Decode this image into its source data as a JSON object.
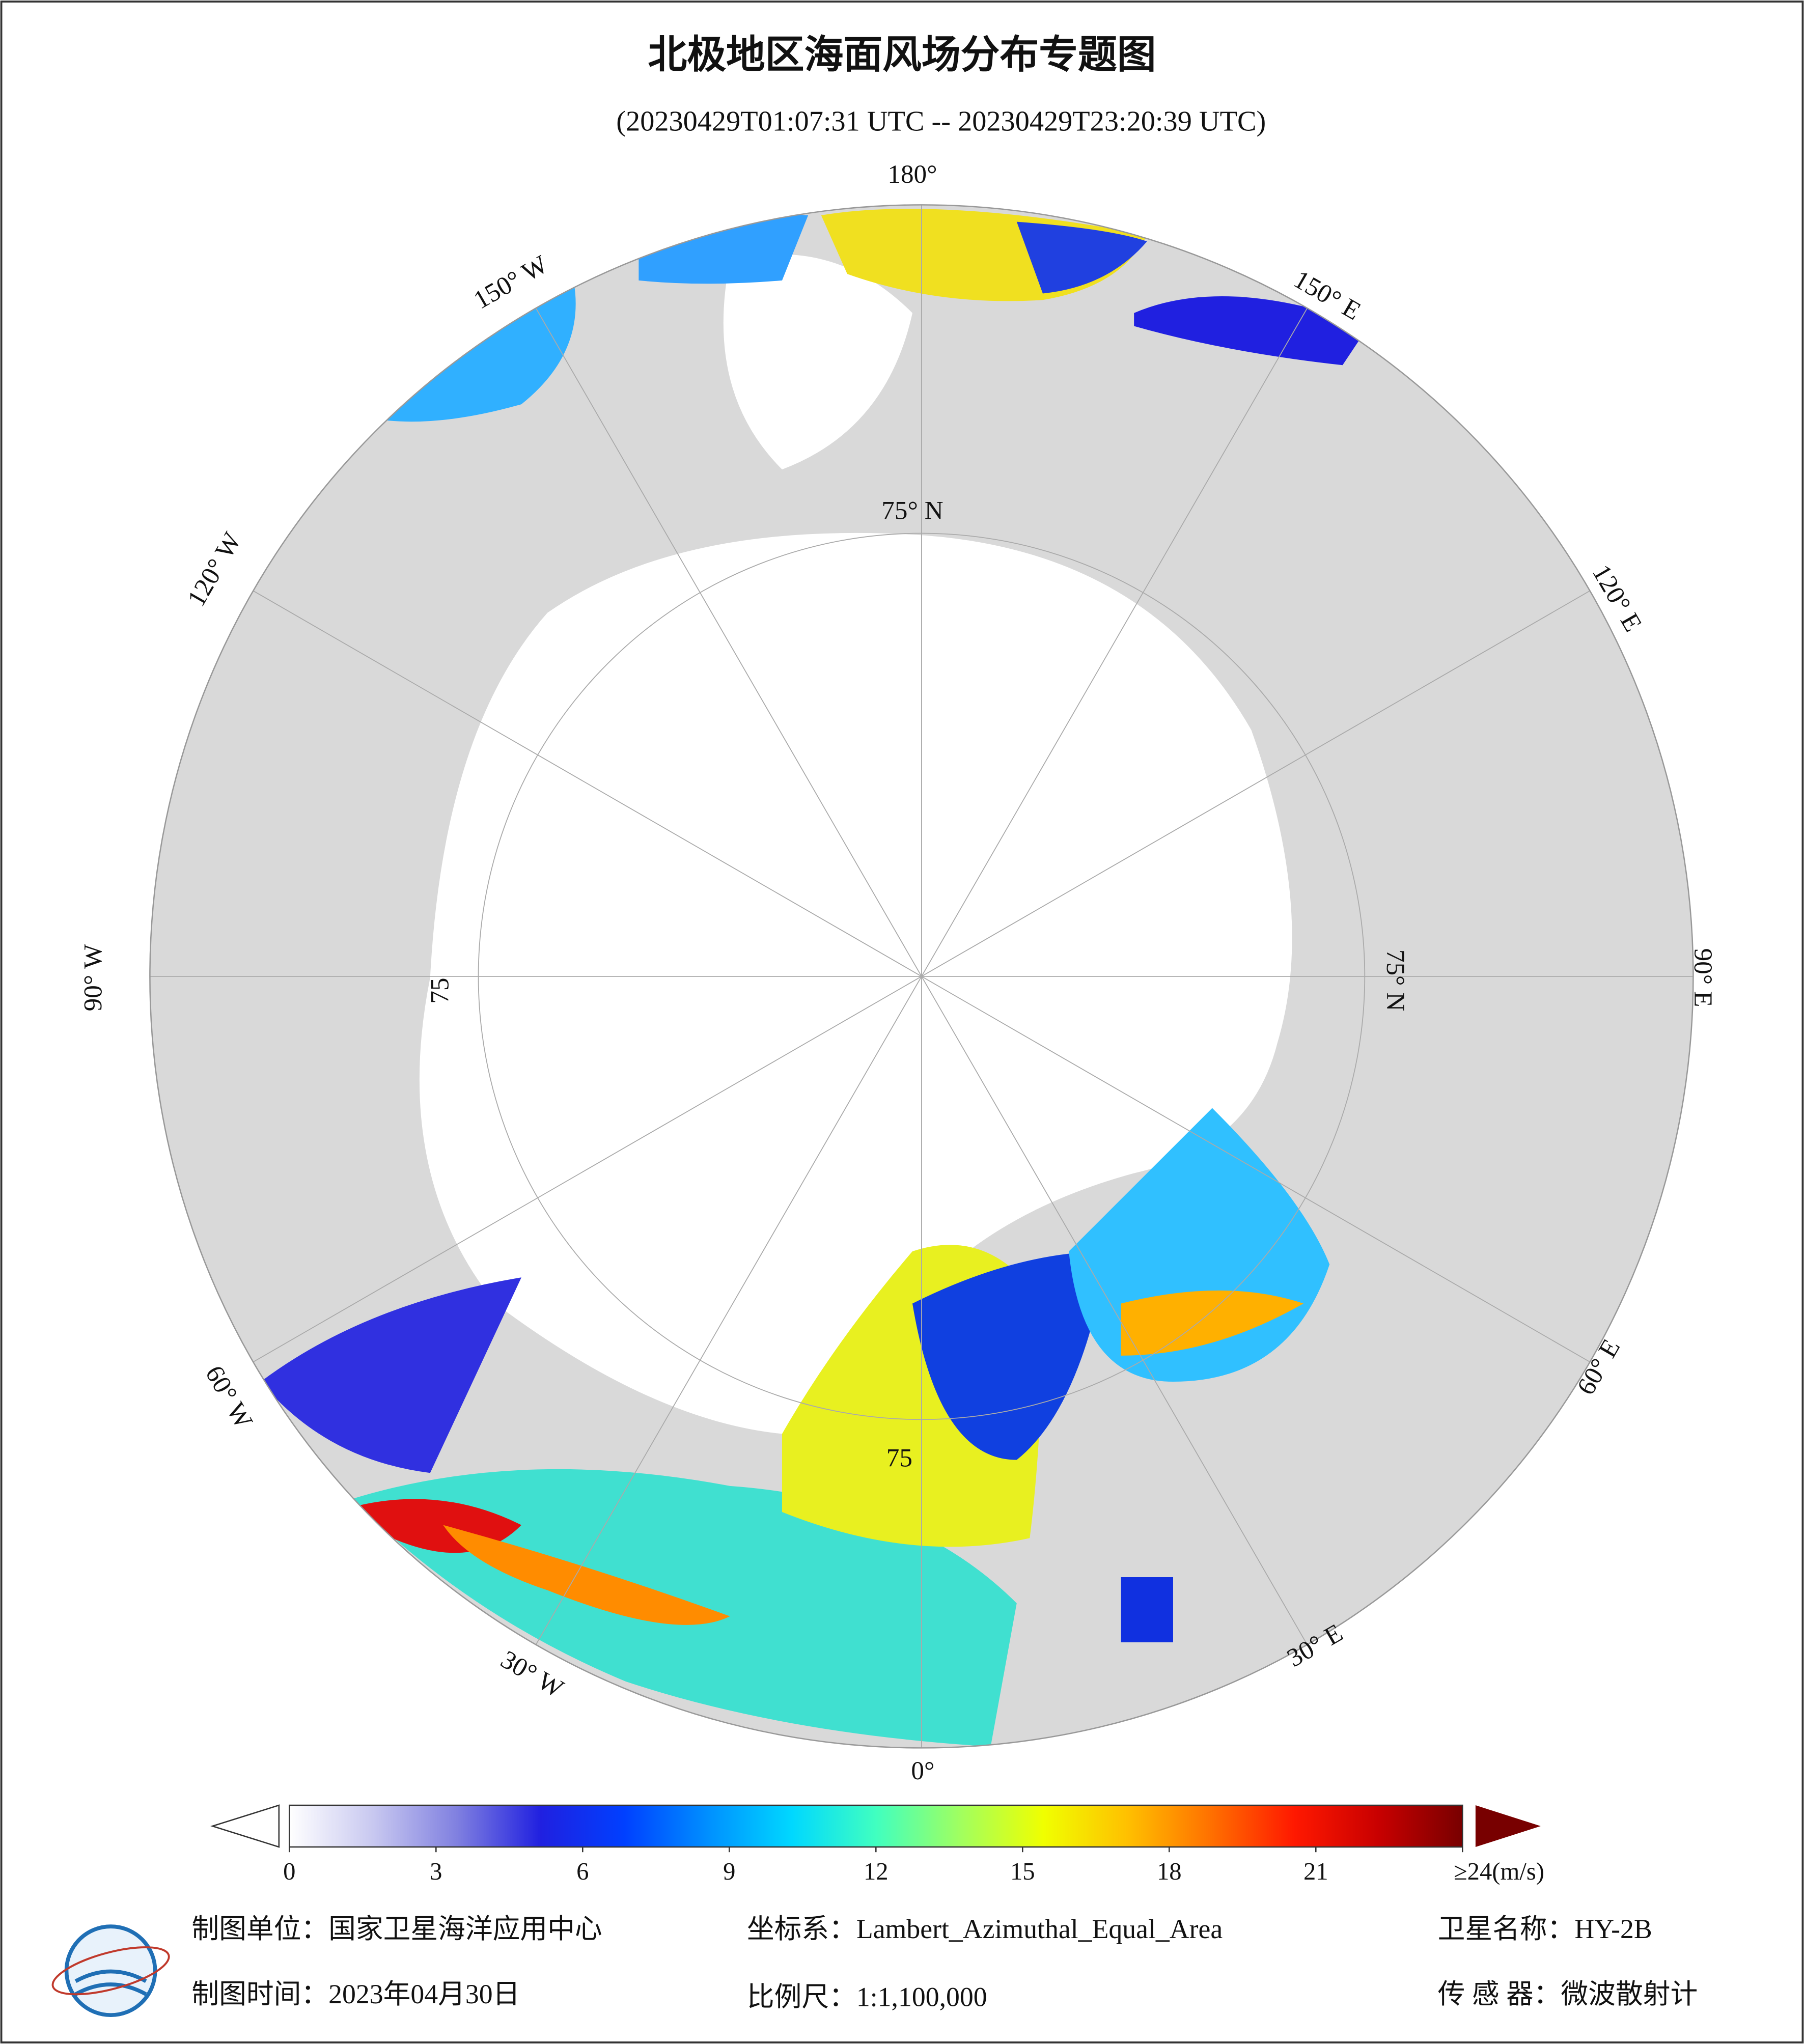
{
  "header": {
    "title": "北极地区海面风场分布专题图",
    "subtitle": "(20230429T01:07:31 UTC -- 20230429T23:20:39 UTC)"
  },
  "map": {
    "longitude_labels": [
      "180°",
      "150° W",
      "120° W",
      "90° W",
      "60° W",
      "30° W",
      "0°",
      "30° E",
      "60° E",
      "90° E",
      "120° E",
      "150° E"
    ],
    "latitude_labels": [
      "75° N",
      "75° N",
      "75",
      "75"
    ]
  },
  "colorbar": {
    "range": [
      0,
      24
    ],
    "ticks": [
      0,
      3,
      6,
      9,
      12,
      15,
      18,
      21,
      {
        "value": 24,
        "label": "≥24(m/s)"
      }
    ],
    "colors": [
      "#ffffff",
      "#c8c8f0",
      "#8080e0",
      "#2020e0",
      "#0040ff",
      "#0090ff",
      "#00d8ff",
      "#40ffc0",
      "#a0ff60",
      "#f0ff00",
      "#ffc000",
      "#ff7000",
      "#ff1800",
      "#c80000",
      "#780000"
    ]
  },
  "footer": [
    "制图单位：国家卫星海洋应用中心",
    "坐标系：Lambert_Azimuthal_Equal_Area",
    "卫星名称：HY-2B",
    "制图时间：2023年04月30日",
    "比例尺：1:1,100,000",
    "传 感 器：微波散射计"
  ]
}
